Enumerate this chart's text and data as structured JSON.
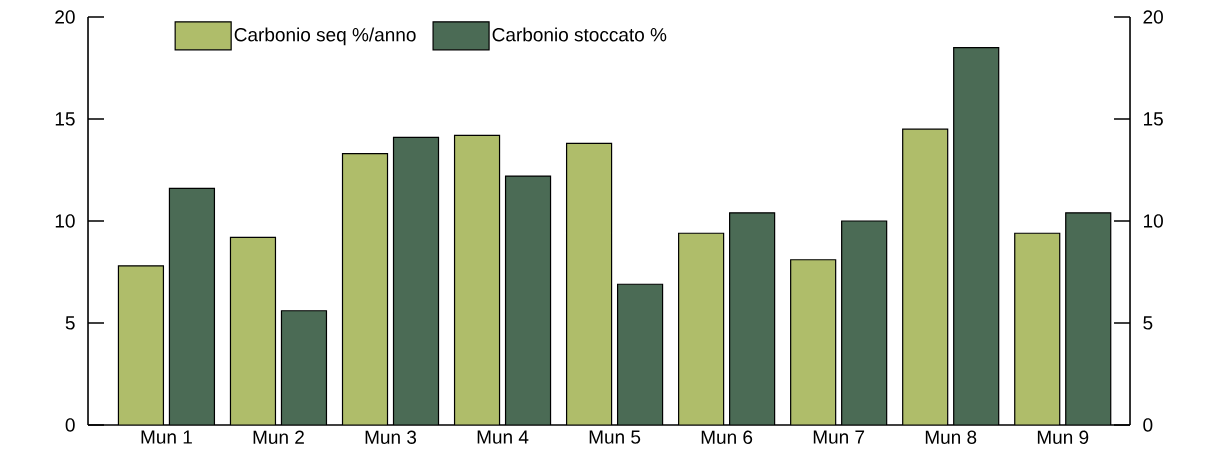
{
  "chart_data": {
    "type": "bar",
    "categories": [
      "Mun 1",
      "Mun 2",
      "Mun 3",
      "Mun 4",
      "Mun 5",
      "Mun 6",
      "Mun 7",
      "Mun 8",
      "Mun 9"
    ],
    "series": [
      {
        "name": "Carbonio seq %/anno",
        "color": "#afbd6a",
        "values": [
          7.8,
          9.2,
          13.3,
          14.2,
          13.8,
          9.4,
          8.1,
          14.5,
          9.4
        ]
      },
      {
        "name": "Carbonio stoccato %",
        "color": "#4b6b55",
        "values": [
          11.6,
          5.6,
          14.1,
          12.2,
          6.9,
          10.4,
          10.0,
          18.5,
          10.4
        ]
      }
    ],
    "ylim": [
      0,
      20
    ],
    "yticks": [
      0,
      5,
      10,
      15,
      20
    ],
    "y2lim": [
      0,
      20
    ],
    "y2ticks": [
      0,
      5,
      10,
      15,
      20
    ],
    "legend": "top",
    "grid": false
  }
}
